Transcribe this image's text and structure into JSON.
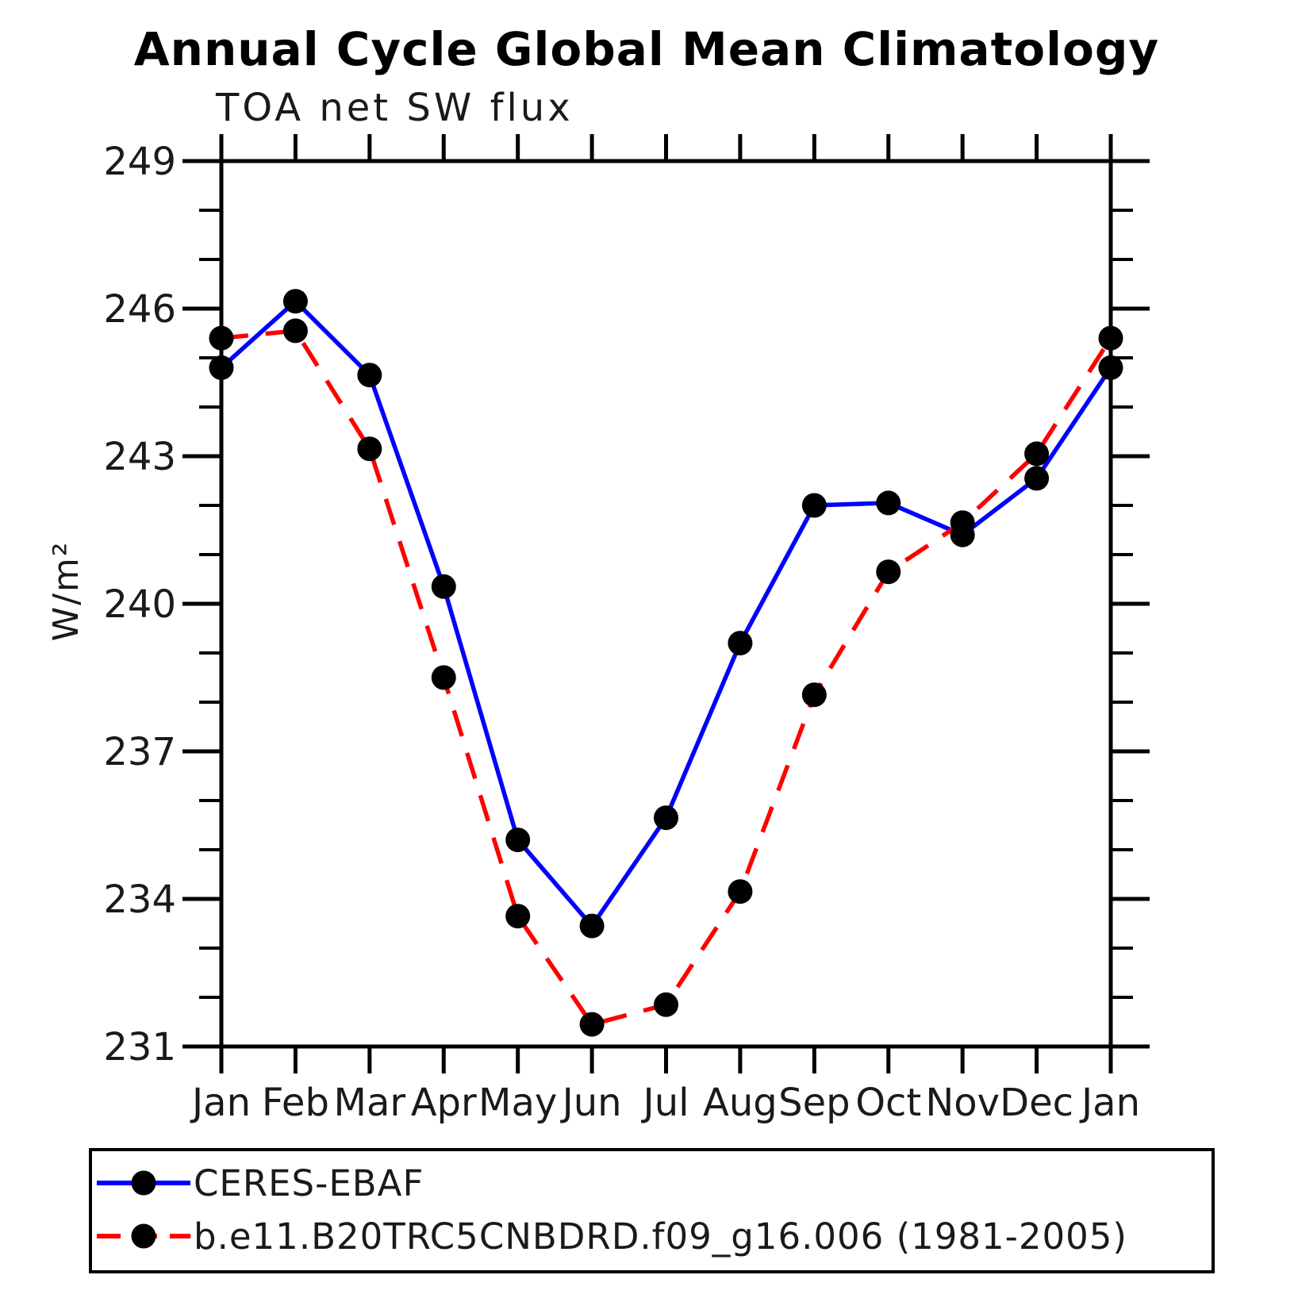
{
  "title": "Annual Cycle Global Mean Climatology",
  "subtitle": "TOA net SW flux",
  "ylabel": "W/m²",
  "chart_data": {
    "type": "line",
    "categories": [
      "Jan",
      "Feb",
      "Mar",
      "Apr",
      "May",
      "Jun",
      "Jul",
      "Aug",
      "Sep",
      "Oct",
      "Nov",
      "Dec",
      "Jan"
    ],
    "series": [
      {
        "name": "CERES-EBAF",
        "color": "#0000ff",
        "line_style": "solid",
        "marker": "filled-circle",
        "marker_color": "#000000",
        "values": [
          244.8,
          246.15,
          244.65,
          240.35,
          235.2,
          233.45,
          235.65,
          239.2,
          242.0,
          242.05,
          241.4,
          242.55,
          244.8
        ]
      },
      {
        "name": "b.e11.B20TRC5CNBDRD.f09_g16.006 (1981-2005)",
        "color": "#ff0000",
        "line_style": "dashed",
        "marker": "filled-circle",
        "marker_color": "#000000",
        "values": [
          245.4,
          245.55,
          243.15,
          238.5,
          233.65,
          231.45,
          231.85,
          234.15,
          238.15,
          240.65,
          241.65,
          243.05,
          245.4
        ]
      }
    ],
    "ylim": [
      231,
      249
    ],
    "ytick_major": [
      231,
      234,
      237,
      240,
      243,
      246,
      249
    ],
    "ytick_minor_step": 1,
    "grid": false,
    "legend_position": "bottom",
    "frame_color": "#000000"
  }
}
